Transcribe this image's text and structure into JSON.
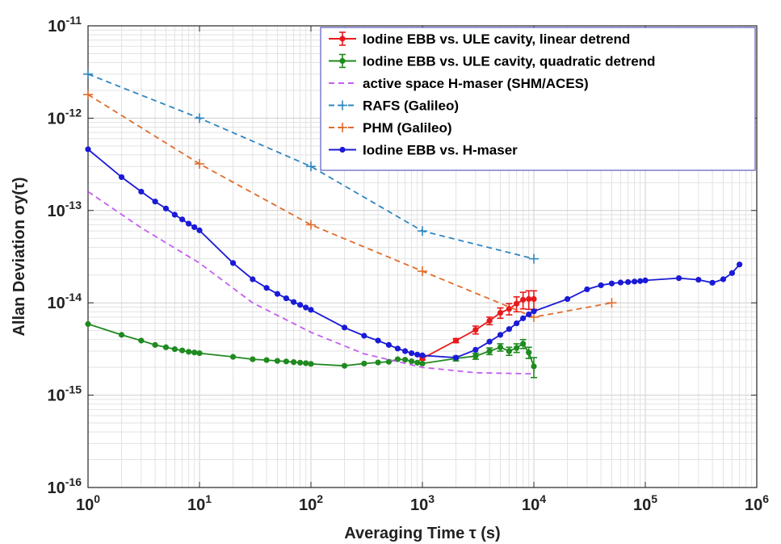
{
  "chart_data": {
    "type": "line",
    "xlabel": "Averaging Time τ (s)",
    "ylabel": "Allan Deviation σy(τ)",
    "x_scale": "log",
    "y_scale": "log",
    "xlim": [
      1,
      1000000
    ],
    "ylim": [
      1e-16,
      1e-11
    ],
    "grid": true,
    "legend_position": "top-right",
    "x_ticks": [
      {
        "base": "10",
        "exp": "0",
        "value": 1
      },
      {
        "base": "10",
        "exp": "1",
        "value": 10
      },
      {
        "base": "10",
        "exp": "2",
        "value": 100
      },
      {
        "base": "10",
        "exp": "3",
        "value": 1000
      },
      {
        "base": "10",
        "exp": "4",
        "value": 10000
      },
      {
        "base": "10",
        "exp": "5",
        "value": 100000
      },
      {
        "base": "10",
        "exp": "6",
        "value": 1000000
      }
    ],
    "y_ticks": [
      {
        "base": "10",
        "exp": "-11",
        "value": 1e-11
      },
      {
        "base": "10",
        "exp": "-12",
        "value": 1e-12
      },
      {
        "base": "10",
        "exp": "-13",
        "value": 1e-13
      },
      {
        "base": "10",
        "exp": "-14",
        "value": 1e-14
      },
      {
        "base": "10",
        "exp": "-15",
        "value": 1e-15
      },
      {
        "base": "10",
        "exp": "-16",
        "value": 1e-16
      }
    ],
    "series": [
      {
        "name": "Iodine EBB vs. ULE cavity, linear detrend",
        "color": "#e8191b",
        "style": "solid-markers-errorbars",
        "x": [
          1000,
          2000,
          3000,
          4000,
          5000,
          6000,
          7000,
          8000,
          9000,
          10000
        ],
        "y": [
          2.5e-15,
          3.9e-15,
          5.1e-15,
          6.4e-15,
          7.8e-15,
          8.6e-15,
          9.8e-15,
          1.08e-14,
          1.1e-14,
          1.1e-14
        ],
        "err": [
          1e-16,
          2e-16,
          5e-16,
          6e-16,
          1e-15,
          1.2e-15,
          1.8e-15,
          2.2e-15,
          2.5e-15,
          2.5e-15
        ]
      },
      {
        "name": "Iodine EBB vs. ULE cavity, quadratic detrend",
        "color": "#1f8a1f",
        "style": "solid-markers-errorbars",
        "x": [
          1,
          2,
          3,
          4,
          5,
          6,
          7,
          8,
          9,
          10,
          20,
          30,
          40,
          50,
          60,
          70,
          80,
          90,
          100,
          200,
          300,
          400,
          500,
          600,
          700,
          800,
          900,
          1000,
          2000,
          3000,
          4000,
          5000,
          6000,
          7000,
          8000,
          9000,
          10000
        ],
        "y": [
          5.9e-15,
          4.5e-15,
          3.9e-15,
          3.5e-15,
          3.3e-15,
          3.15e-15,
          3.05e-15,
          2.95e-15,
          2.9e-15,
          2.85e-15,
          2.6e-15,
          2.45e-15,
          2.4e-15,
          2.35e-15,
          2.32e-15,
          2.28e-15,
          2.25e-15,
          2.22e-15,
          2.18e-15,
          2.08e-15,
          2.2e-15,
          2.26e-15,
          2.3e-15,
          2.45e-15,
          2.42e-15,
          2.33e-15,
          2.25e-15,
          2.2e-15,
          2.5e-15,
          2.65e-15,
          3e-15,
          3.3e-15,
          3e-15,
          3.25e-15,
          3.6e-15,
          2.9e-15,
          2.05e-15
        ],
        "err": [
          0,
          0,
          0,
          0,
          0,
          0,
          0,
          0,
          0,
          0,
          0,
          0,
          0,
          0,
          0,
          0,
          0,
          0,
          0,
          0,
          0,
          0,
          0,
          0,
          0,
          0,
          0,
          0,
          1.5e-16,
          2e-16,
          2.5e-16,
          3e-16,
          3e-16,
          3.5e-16,
          4e-16,
          4e-16,
          5e-16
        ]
      },
      {
        "name": "active space H-maser (SHM/ACES)",
        "color": "#c35ef0",
        "style": "dashed",
        "x": [
          1,
          3,
          10,
          30,
          100,
          300,
          1000,
          3000,
          10000
        ],
        "y": [
          1.6e-13,
          6.5e-14,
          2.7e-14,
          1e-14,
          4.8e-15,
          2.8e-15,
          2e-15,
          1.75e-15,
          1.7e-15
        ]
      },
      {
        "name": "RAFS (Galileo)",
        "color": "#2e86c1",
        "style": "dashed-plus",
        "x": [
          1,
          10,
          100,
          1000,
          10000
        ],
        "y": [
          3e-12,
          1e-12,
          3e-13,
          6e-14,
          3e-14
        ]
      },
      {
        "name": "PHM (Galileo)",
        "color": "#e06c2c",
        "style": "dashed-plus",
        "x": [
          1,
          10,
          100,
          1000,
          10000,
          50000
        ],
        "y": [
          1.8e-12,
          3.2e-13,
          7e-14,
          2.2e-14,
          7e-15,
          1e-14
        ]
      },
      {
        "name": "Iodine EBB vs. H-maser",
        "color": "#1a1ad6",
        "style": "solid-markers",
        "x": [
          1,
          2,
          3,
          4,
          5,
          6,
          7,
          8,
          9,
          10,
          20,
          30,
          40,
          50,
          60,
          70,
          80,
          90,
          100,
          200,
          300,
          400,
          500,
          600,
          700,
          800,
          900,
          1000,
          2000,
          3000,
          4000,
          5000,
          6000,
          7000,
          8000,
          9000,
          10000,
          20000,
          30000,
          40000,
          50000,
          60000,
          70000,
          80000,
          90000,
          100000,
          200000,
          300000,
          400000,
          500000,
          600000,
          700000
        ],
        "y": [
          4.6e-13,
          2.3e-13,
          1.6e-13,
          1.25e-13,
          1.05e-13,
          9e-14,
          8e-14,
          7.2e-14,
          6.6e-14,
          6.1e-14,
          2.7e-14,
          1.8e-14,
          1.45e-14,
          1.25e-14,
          1.12e-14,
          1.02e-14,
          9.5e-15,
          8.9e-15,
          8.4e-15,
          5.4e-15,
          4.4e-15,
          3.9e-15,
          3.5e-15,
          3.2e-15,
          3e-15,
          2.85e-15,
          2.75e-15,
          2.7e-15,
          2.55e-15,
          3.1e-15,
          3.8e-15,
          4.5e-15,
          5.2e-15,
          6e-15,
          6.8e-15,
          7.5e-15,
          8.1e-15,
          1.1e-14,
          1.4e-14,
          1.55e-14,
          1.62e-14,
          1.66e-14,
          1.68e-14,
          1.7e-14,
          1.72e-14,
          1.75e-14,
          1.85e-14,
          1.78e-14,
          1.65e-14,
          1.8e-14,
          2.1e-14,
          2.6e-14
        ]
      }
    ]
  }
}
